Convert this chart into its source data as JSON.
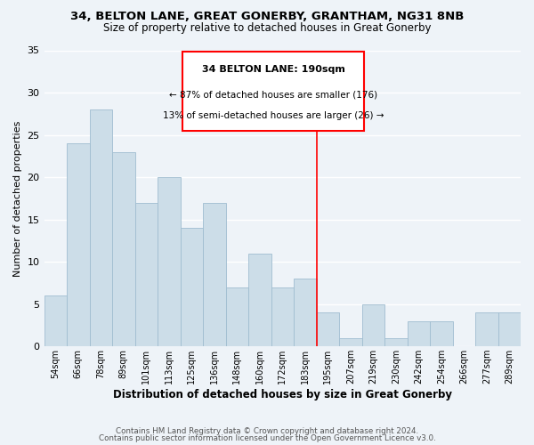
{
  "title": "34, BELTON LANE, GREAT GONERBY, GRANTHAM, NG31 8NB",
  "subtitle": "Size of property relative to detached houses in Great Gonerby",
  "xlabel": "Distribution of detached houses by size in Great Gonerby",
  "ylabel": "Number of detached properties",
  "bar_color": "#ccdde8",
  "bar_edge_color": "#a0bdd0",
  "categories": [
    "54sqm",
    "66sqm",
    "78sqm",
    "89sqm",
    "101sqm",
    "113sqm",
    "125sqm",
    "136sqm",
    "148sqm",
    "160sqm",
    "172sqm",
    "183sqm",
    "195sqm",
    "207sqm",
    "219sqm",
    "230sqm",
    "242sqm",
    "254sqm",
    "266sqm",
    "277sqm",
    "289sqm"
  ],
  "values": [
    6,
    24,
    28,
    23,
    17,
    20,
    14,
    17,
    7,
    11,
    7,
    8,
    4,
    1,
    5,
    1,
    3,
    3,
    0,
    4,
    4
  ],
  "ylim": [
    0,
    35
  ],
  "yticks": [
    0,
    5,
    10,
    15,
    20,
    25,
    30,
    35
  ],
  "property_line_label": "34 BELTON LANE: 190sqm",
  "annotation_line1": "← 87% of detached houses are smaller (176)",
  "annotation_line2": "13% of semi-detached houses are larger (26) →",
  "footer1": "Contains HM Land Registry data © Crown copyright and database right 2024.",
  "footer2": "Contains public sector information licensed under the Open Government Licence v3.0.",
  "plot_bg_color": "#eef3f8",
  "fig_bg_color": "#eef3f8",
  "grid_color": "#ffffff"
}
